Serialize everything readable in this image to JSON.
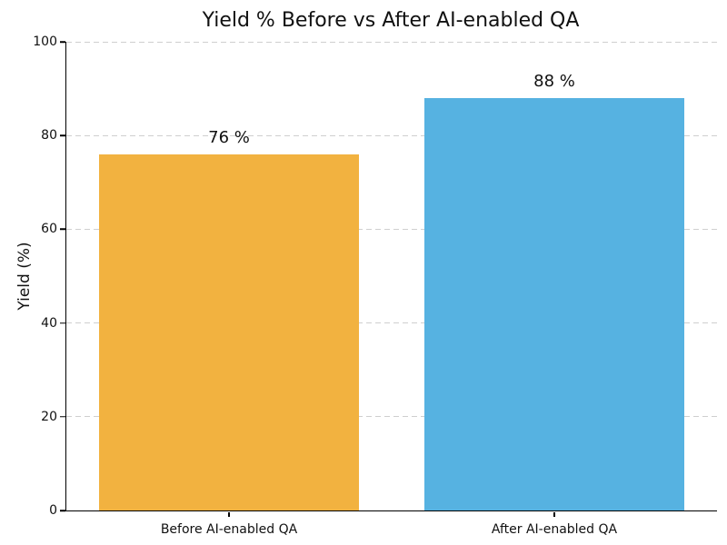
{
  "figure": {
    "background": "#ffffff"
  },
  "chart_data": {
    "type": "bar",
    "title": "Yield % Before vs After AI-enabled QA",
    "xlabel": "",
    "ylabel": "Yield (%)",
    "categories": [
      "Before AI-enabled QA",
      "After AI-enabled QA"
    ],
    "values": [
      76,
      88
    ],
    "bar_labels": [
      "76 %",
      "88 %"
    ],
    "bar_colors": [
      "#F2B240",
      "#56B2E1"
    ],
    "ylim": [
      0,
      100
    ],
    "yticks": [
      0,
      20,
      40,
      60,
      80,
      100
    ],
    "xlim": [
      -0.5,
      1.5
    ],
    "bar_width_fraction": 0.8,
    "grid": {
      "axis": "y",
      "style": "dashed",
      "color": "#cfcfcf"
    },
    "legend_position": "none",
    "spines": [
      "left",
      "bottom"
    ]
  }
}
